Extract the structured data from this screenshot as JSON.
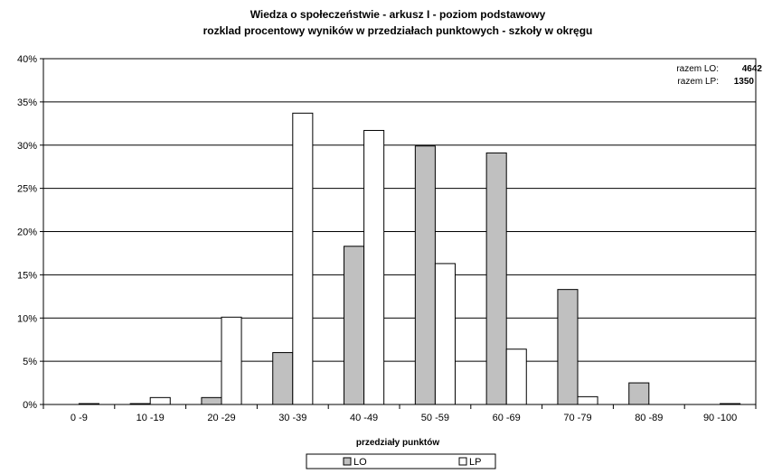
{
  "chart_data": {
    "type": "bar",
    "title": "Wiedza o społeczeństwie - arkusz I - poziom podstawowy",
    "subtitle": "rozklad procentowy wyników w przedziałach punktowych - szkoły w okręgu",
    "xlabel": "przedziały punktów",
    "ylabel": "",
    "categories": [
      "0 -9",
      "10 -19",
      "20 -29",
      "30 -39",
      "40 -49",
      "50 -59",
      "60 -69",
      "70 -79",
      "80 -89",
      "90 -100"
    ],
    "series": [
      {
        "name": "LO",
        "color": "#c0c0c0",
        "values": [
          0.0,
          0.1,
          0.8,
          6.0,
          18.3,
          29.9,
          29.1,
          13.3,
          2.5,
          0.0
        ]
      },
      {
        "name": "LP",
        "color": "#ffffff",
        "values": [
          0.1,
          0.8,
          10.1,
          33.7,
          31.7,
          16.3,
          6.4,
          0.9,
          0.0,
          0.1
        ]
      }
    ],
    "ylim": [
      0,
      40
    ],
    "yticks": [
      0,
      5,
      10,
      15,
      20,
      25,
      30,
      35,
      40
    ],
    "ytick_suffix": "%",
    "grid": true,
    "legend_position": "bottom-center",
    "annotations": [
      {
        "label": "razem LO:",
        "value": "4642"
      },
      {
        "label": "razem LP:",
        "value": "1350"
      }
    ]
  }
}
